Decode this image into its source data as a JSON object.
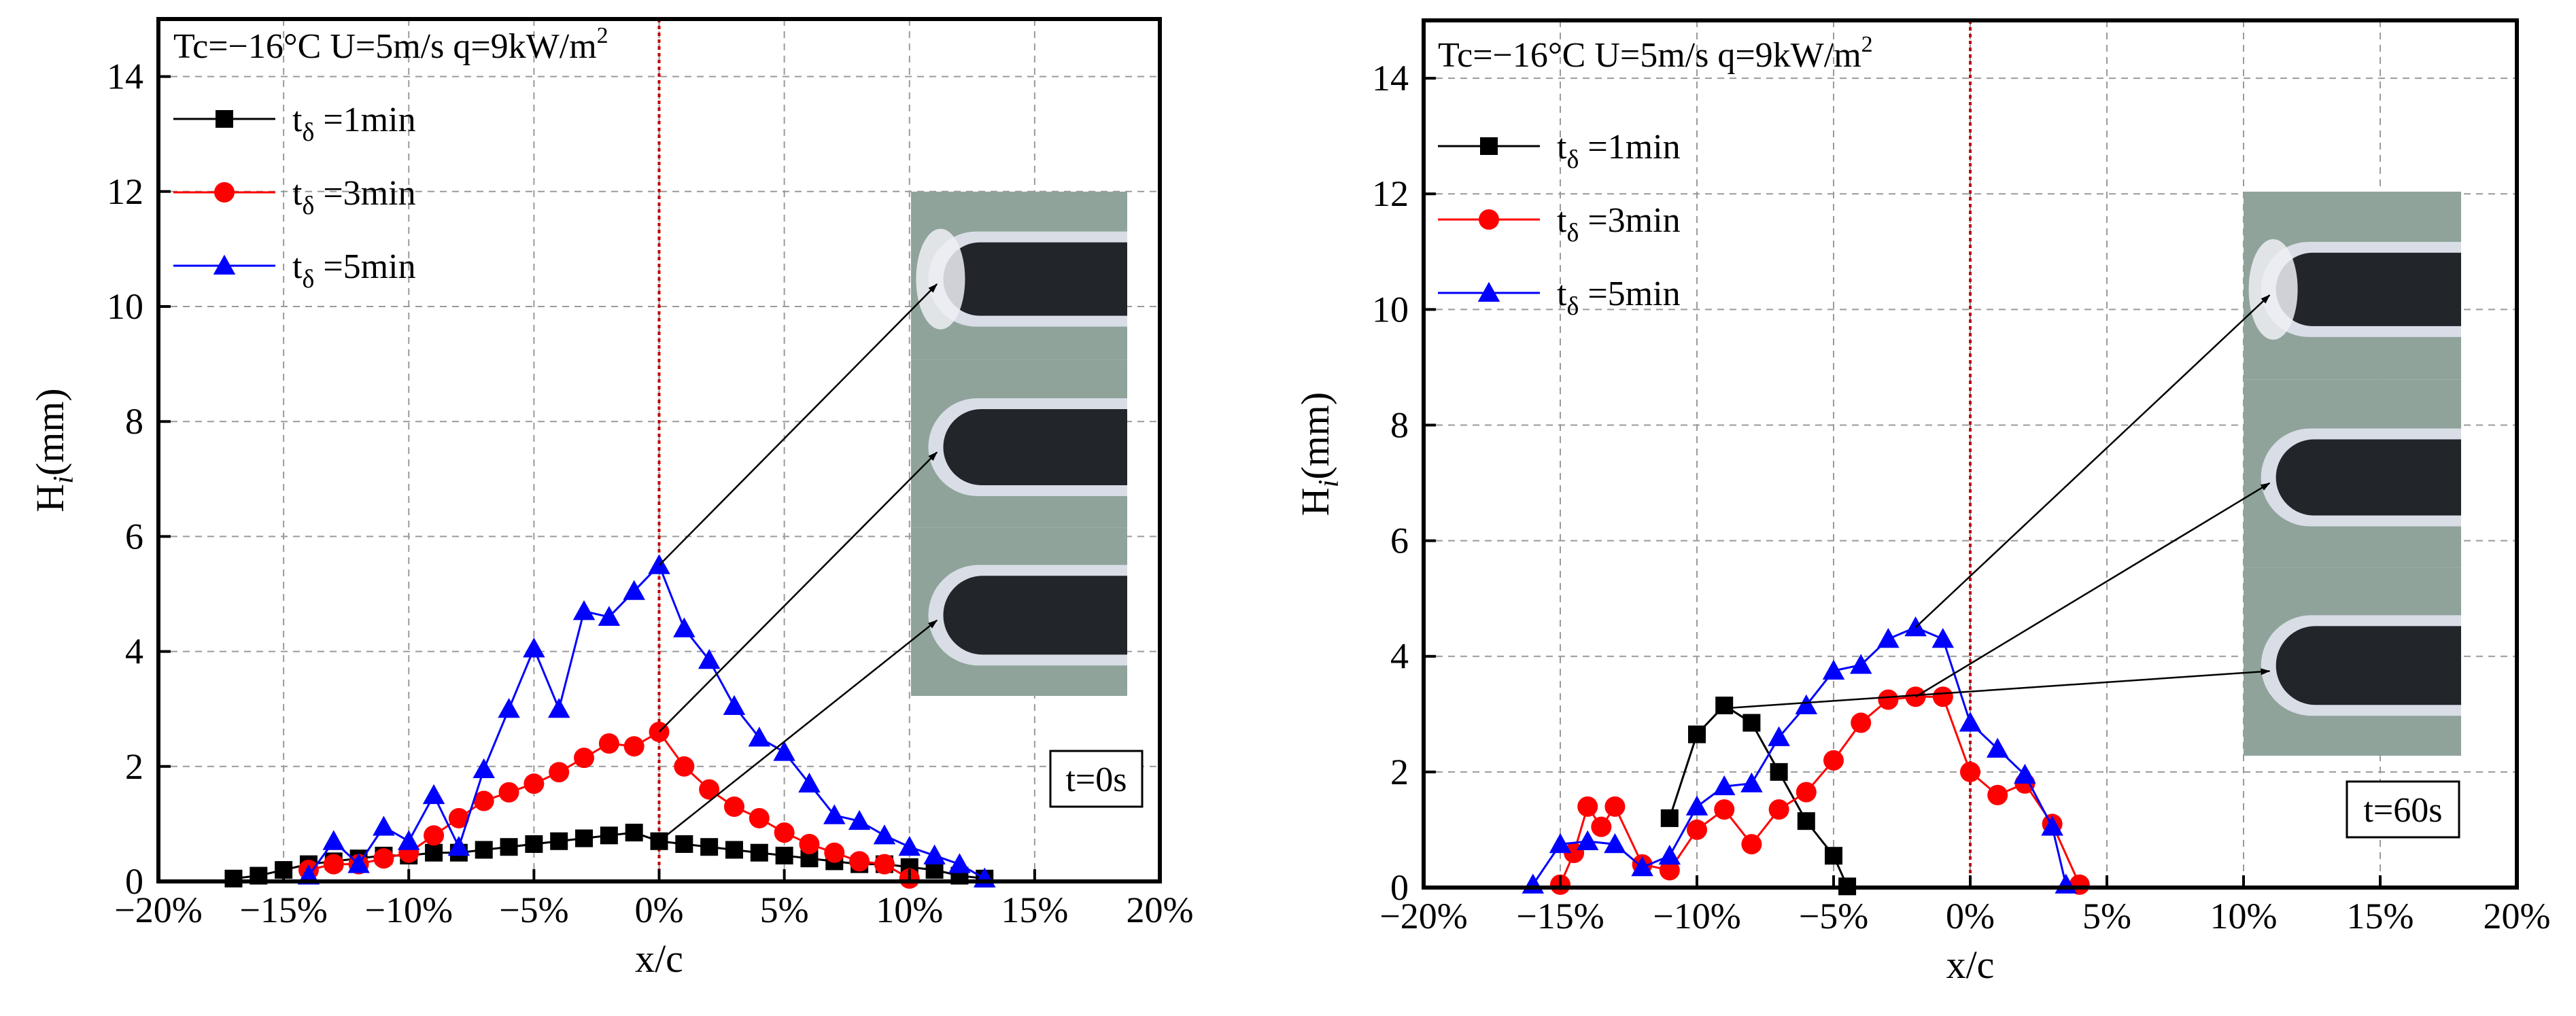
{
  "chart_data": [
    {
      "type": "line",
      "panel": "left",
      "title": "Tc=−16°C U=5m/s q=9kW/m",
      "title_superscript": "2",
      "xlabel": "x/c",
      "ylabel_main": "H",
      "ylabel_sub": "i",
      "ylabel_unit": "(mm)",
      "xlim": [
        -20,
        20
      ],
      "ylim": [
        0,
        15
      ],
      "x_ticks": [
        -20,
        -15,
        -10,
        -5,
        0,
        5,
        10,
        15,
        20
      ],
      "x_tick_labels": [
        "−20%",
        "−15%",
        "−10%",
        "−5%",
        "0%",
        "5%",
        "10%",
        "15%",
        "20%"
      ],
      "y_ticks": [
        0,
        2,
        4,
        6,
        8,
        10,
        12,
        14
      ],
      "y_tick_labels": [
        "0",
        "2",
        "4",
        "6",
        "8",
        "10",
        "12",
        "14"
      ],
      "annotation": "t=0s",
      "ref_line_x": 0,
      "photo_label": "ice shape photographs",
      "photo_arrows": [
        {
          "from": [
            0,
            5.5
          ],
          "to_frame": 0
        },
        {
          "from": [
            0,
            2.6
          ],
          "to_frame": 1
        },
        {
          "from": [
            0,
            0.7
          ],
          "to_frame": 2
        }
      ],
      "series": [
        {
          "name": "t",
          "sub": "δ",
          "suffix": " =1min",
          "color": "#000000",
          "marker": "square",
          "x": [
            -17,
            -16,
            -15,
            -14,
            -13,
            -12,
            -11,
            -10,
            -9,
            -8,
            -7,
            -6,
            -5,
            -4,
            -3,
            -2,
            -1,
            0,
            1,
            2,
            3,
            4,
            5,
            6,
            7,
            8,
            9,
            10,
            11,
            12,
            13
          ],
          "y": [
            0.05,
            0.1,
            0.2,
            0.3,
            0.35,
            0.4,
            0.45,
            0.45,
            0.5,
            0.5,
            0.55,
            0.6,
            0.65,
            0.7,
            0.75,
            0.8,
            0.85,
            0.7,
            0.65,
            0.6,
            0.55,
            0.5,
            0.45,
            0.4,
            0.35,
            0.3,
            0.3,
            0.25,
            0.2,
            0.1,
            0.05
          ]
        },
        {
          "name": "t",
          "sub": "δ",
          "suffix": " =3min",
          "color": "#ff0000",
          "marker": "circle",
          "x": [
            -14,
            -13,
            -12,
            -11,
            -10,
            -9,
            -8,
            -7,
            -6,
            -5,
            -4,
            -3,
            -2,
            -1,
            0,
            1,
            2,
            3,
            4,
            5,
            6,
            7,
            8,
            9,
            10
          ],
          "y": [
            0.2,
            0.3,
            0.3,
            0.4,
            0.5,
            0.8,
            1.1,
            1.4,
            1.55,
            1.7,
            1.9,
            2.15,
            2.4,
            2.35,
            2.6,
            2.0,
            1.6,
            1.3,
            1.1,
            0.85,
            0.65,
            0.5,
            0.35,
            0.3,
            0.05
          ]
        },
        {
          "name": "t",
          "sub": "δ",
          "suffix": " =5min",
          "color": "#0000ff",
          "marker": "triangle",
          "x": [
            -14,
            -13,
            -12,
            -11,
            -10,
            -9,
            -8,
            -7,
            -6,
            -5,
            -4,
            -3,
            -2,
            -1,
            0,
            1,
            2,
            3,
            4,
            5,
            6,
            7,
            8,
            9,
            10,
            11,
            12,
            13
          ],
          "y": [
            0.1,
            0.7,
            0.3,
            0.95,
            0.7,
            1.5,
            0.6,
            1.95,
            3.0,
            4.05,
            3.0,
            4.7,
            4.6,
            5.05,
            5.5,
            4.4,
            3.85,
            3.05,
            2.5,
            2.25,
            1.7,
            1.15,
            1.05,
            0.8,
            0.6,
            0.45,
            0.3,
            0.05
          ]
        }
      ]
    },
    {
      "type": "line",
      "panel": "right",
      "title": "Tc=−16°C U=5m/s q=9kW/m",
      "title_superscript": "2",
      "xlabel": "x/c",
      "ylabel_main": "H",
      "ylabel_sub": "i",
      "ylabel_unit": "(mm)",
      "xlim": [
        -20,
        20
      ],
      "ylim": [
        0,
        15
      ],
      "x_ticks": [
        -20,
        -15,
        -10,
        -5,
        0,
        5,
        10,
        15,
        20
      ],
      "x_tick_labels": [
        "−20%",
        "−15%",
        "−10%",
        "−5%",
        "0%",
        "5%",
        "10%",
        "15%",
        "20%"
      ],
      "y_ticks": [
        0,
        2,
        4,
        6,
        8,
        10,
        12,
        14
      ],
      "y_tick_labels": [
        "0",
        "2",
        "4",
        "6",
        "8",
        "10",
        "12",
        "14"
      ],
      "annotation": "t=60s",
      "ref_line_x": 0,
      "photo_label": "ice shape photographs",
      "photo_arrows": [
        {
          "from": [
            -2,
            4.5
          ],
          "to_frame": 0
        },
        {
          "from": [
            -2,
            3.3
          ],
          "to_frame": 1
        },
        {
          "from": [
            -9,
            3.1
          ],
          "to_frame": 2
        }
      ],
      "series": [
        {
          "name": "t",
          "sub": "δ",
          "suffix": " =1min",
          "color": "#000000",
          "marker": "square",
          "x": [
            -11,
            -10,
            -9,
            -8,
            -7,
            -6,
            -5,
            -4.5
          ],
          "y": [
            1.2,
            2.65,
            3.15,
            2.85,
            2.0,
            1.15,
            0.55,
            0.02
          ]
        },
        {
          "name": "t",
          "sub": "δ",
          "suffix": " =3min",
          "color": "#ff0000",
          "marker": "circle",
          "x": [
            -15,
            -14.5,
            -14,
            -13.5,
            -13,
            -12,
            -11,
            -10,
            -9,
            -8,
            -7,
            -6,
            -5,
            -4,
            -3,
            -2,
            -1,
            0,
            1,
            2,
            3,
            4
          ],
          "y": [
            0.05,
            0.6,
            1.4,
            1.05,
            1.4,
            0.4,
            0.3,
            1.0,
            1.35,
            0.75,
            1.35,
            1.65,
            2.2,
            2.85,
            3.25,
            3.3,
            3.3,
            2.0,
            1.6,
            1.8,
            1.1,
            0.05
          ]
        },
        {
          "name": "t",
          "sub": "δ",
          "suffix": " =5min",
          "color": "#0000ff",
          "marker": "triangle",
          "x": [
            -16,
            -15,
            -14,
            -13,
            -12,
            -11,
            -10,
            -9,
            -8,
            -7,
            -6,
            -5,
            -4,
            -3,
            -2,
            -1,
            0,
            1,
            2,
            3,
            3.5
          ],
          "y": [
            0.05,
            0.75,
            0.8,
            0.75,
            0.35,
            0.55,
            1.4,
            1.75,
            1.8,
            2.6,
            3.15,
            3.75,
            3.85,
            4.3,
            4.5,
            4.3,
            2.85,
            2.4,
            1.95,
            1.05,
            0.05
          ]
        }
      ]
    }
  ]
}
